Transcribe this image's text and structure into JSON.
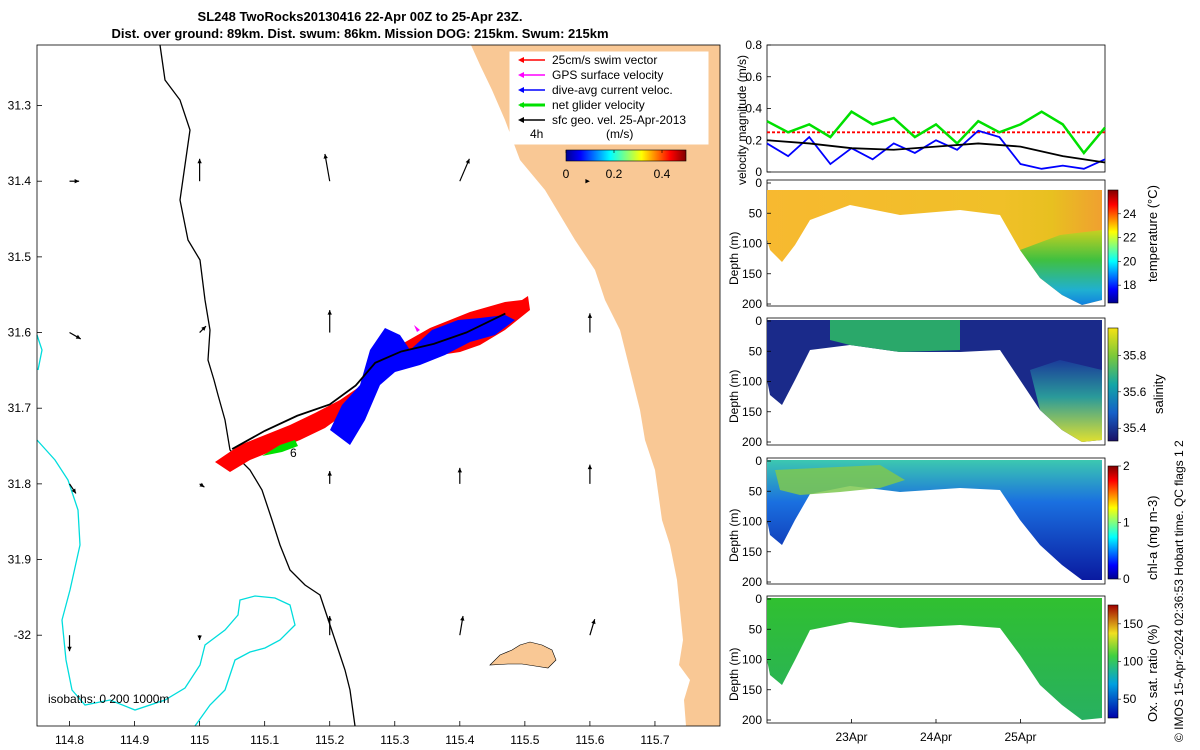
{
  "header": {
    "title_line1": "SL248 TwoRocks20130416 22-Apr 00Z to 25-Apr 23Z.",
    "title_line2": "Dist. over ground: 89km. Dist. swum: 86km. Mission DOG: 215km. Swum: 215km"
  },
  "credit": "© IMOS 15-Apr-2024 02:36:53 Hobart time. QC flags 1  2",
  "colors": {
    "land": "#f9c895",
    "swim_vector": "#ff0000",
    "gps_velocity": "#ff00ff",
    "dive_avg": "#0000ff",
    "net_velocity": "#00e000",
    "sfc_geo": "#000000",
    "isobath_200": "#000000",
    "isobath_1000": "#00dddd"
  },
  "chart_data": [
    {
      "type": "map",
      "xlim": [
        114.75,
        115.8
      ],
      "ylim": [
        -32.12,
        -31.22
      ],
      "x_ticks": [
        "114.8",
        "114.9",
        "115",
        "115.1",
        "115.2",
        "115.3",
        "115.4",
        "115.5",
        "115.6",
        "115.7"
      ],
      "y_ticks": [
        "31.3",
        "31.4",
        "31.5",
        "31.6",
        "31.7",
        "31.8",
        "31.9",
        "-32"
      ],
      "legend": [
        {
          "label": "25cm/s swim vector",
          "color": "#ff0000"
        },
        {
          "label": "GPS surface velocity",
          "color": "#ff00ff"
        },
        {
          "label": "dive-avg current veloc.",
          "color": "#0000ff"
        },
        {
          "label": "net glider velocity",
          "color": "#00e000"
        },
        {
          "label": "sfc geo. vel. 25-Apr-2013",
          "color": "#000000"
        }
      ],
      "colorbar": {
        "label": "(m/s)",
        "ticks": [
          "0",
          "0.2",
          "0.4"
        ],
        "range": [
          0,
          0.5
        ]
      },
      "time_label": "4h",
      "track_label": "6",
      "isobath_label": "isobaths: 0   200  1000m",
      "track": [
        [
          115.05,
          -31.754
        ],
        [
          115.1,
          -31.73
        ],
        [
          115.15,
          -31.71
        ],
        [
          115.2,
          -31.695
        ],
        [
          115.24,
          -31.67
        ],
        [
          115.27,
          -31.64
        ],
        [
          115.31,
          -31.625
        ],
        [
          115.36,
          -31.615
        ],
        [
          115.41,
          -31.6
        ],
        [
          115.47,
          -31.575
        ]
      ],
      "arrow_grid": [
        {
          "lon": 114.8,
          "lat": -31.4,
          "u": 0.06,
          "v": 0.0
        },
        {
          "lon": 115.0,
          "lat": -31.4,
          "u": 0.0,
          "v": 0.14
        },
        {
          "lon": 115.2,
          "lat": -31.4,
          "u": -0.03,
          "v": 0.17
        },
        {
          "lon": 115.4,
          "lat": -31.4,
          "u": 0.06,
          "v": 0.14
        },
        {
          "lon": 114.8,
          "lat": -31.6,
          "u": 0.07,
          "v": -0.04
        },
        {
          "lon": 115.0,
          "lat": -31.6,
          "u": 0.04,
          "v": 0.04
        },
        {
          "lon": 115.2,
          "lat": -31.6,
          "u": 0.0,
          "v": 0.14
        },
        {
          "lon": 115.6,
          "lat": -31.6,
          "u": 0.0,
          "v": 0.12
        },
        {
          "lon": 115.6,
          "lat": -31.4,
          "u": 0.0,
          "v": 0.0
        },
        {
          "lon": 114.8,
          "lat": -31.8,
          "u": 0.04,
          "v": -0.06
        },
        {
          "lon": 115.0,
          "lat": -31.8,
          "u": 0.03,
          "v": -0.02
        },
        {
          "lon": 115.2,
          "lat": -31.8,
          "u": 0.0,
          "v": 0.08
        },
        {
          "lon": 115.4,
          "lat": -31.8,
          "u": 0.0,
          "v": 0.1
        },
        {
          "lon": 115.6,
          "lat": -31.8,
          "u": 0.0,
          "v": 0.12
        },
        {
          "lon": 114.8,
          "lat": -32.0,
          "u": 0.0,
          "v": -0.1
        },
        {
          "lon": 115.0,
          "lat": -32.0,
          "u": 0.0,
          "v": -0.03
        },
        {
          "lon": 115.2,
          "lat": -32.0,
          "u": 0.0,
          "v": 0.12
        },
        {
          "lon": 115.4,
          "lat": -32.0,
          "u": 0.02,
          "v": 0.12
        },
        {
          "lon": 115.6,
          "lat": -32.0,
          "u": 0.03,
          "v": 0.1
        }
      ]
    },
    {
      "type": "line",
      "ylabel": "velocity magnitude (m/s)",
      "ylim": [
        0,
        0.8
      ],
      "y_ticks": [
        "0",
        "0.2",
        "0.4",
        "0.6",
        "0.8"
      ],
      "xlim": [
        0,
        4
      ],
      "series": [
        {
          "color": "#ff0000",
          "x": [
            0,
            4
          ],
          "values": [
            0.25,
            0.25
          ]
        },
        {
          "color": "#00e000",
          "x": [
            0,
            0.25,
            0.5,
            0.75,
            1.0,
            1.25,
            1.5,
            1.75,
            2.0,
            2.25,
            2.5,
            2.75,
            3.0,
            3.25,
            3.5,
            3.75,
            4.0
          ],
          "values": [
            0.32,
            0.25,
            0.3,
            0.22,
            0.38,
            0.3,
            0.34,
            0.22,
            0.3,
            0.18,
            0.32,
            0.25,
            0.3,
            0.38,
            0.3,
            0.12,
            0.28
          ]
        },
        {
          "color": "#0000ff",
          "x": [
            0,
            0.25,
            0.5,
            0.75,
            1.0,
            1.25,
            1.5,
            1.75,
            2.0,
            2.25,
            2.5,
            2.75,
            3.0,
            3.25,
            3.5,
            3.75,
            4.0
          ],
          "values": [
            0.18,
            0.1,
            0.22,
            0.05,
            0.15,
            0.08,
            0.18,
            0.12,
            0.2,
            0.14,
            0.26,
            0.22,
            0.05,
            0.02,
            0.04,
            0.02,
            0.08
          ]
        },
        {
          "color": "#000000",
          "x": [
            0,
            0.5,
            1.0,
            1.5,
            2.0,
            2.5,
            3.0,
            3.5,
            4.0
          ],
          "values": [
            0.2,
            0.18,
            0.15,
            0.14,
            0.16,
            0.18,
            0.16,
            0.1,
            0.06
          ]
        }
      ]
    },
    {
      "type": "heatmap",
      "ylabel": "Depth (m)",
      "y_ticks": [
        "0",
        "50",
        "100",
        "150",
        "200"
      ],
      "ylim": [
        0,
        200
      ],
      "colorbar_label": "temperature (°C)",
      "colorbar_ticks": [
        "18",
        "20",
        "22",
        "24"
      ]
    },
    {
      "type": "heatmap",
      "ylabel": "Depth (m)",
      "y_ticks": [
        "0",
        "50",
        "100",
        "150",
        "200"
      ],
      "ylim": [
        0,
        200
      ],
      "colorbar_label": "salinity",
      "colorbar_ticks": [
        "35.4",
        "35.6",
        "35.8"
      ]
    },
    {
      "type": "heatmap",
      "ylabel": "Depth (m)",
      "y_ticks": [
        "0",
        "50",
        "100",
        "150",
        "200"
      ],
      "ylim": [
        0,
        200
      ],
      "colorbar_label": "chl-a (mg m-3)",
      "colorbar_ticks": [
        "0",
        "1",
        "2"
      ]
    },
    {
      "type": "heatmap",
      "ylabel": "Depth (m)",
      "y_ticks": [
        "0",
        "50",
        "100",
        "150",
        "200"
      ],
      "ylim": [
        0,
        200
      ],
      "colorbar_label": "Ox. sat. ratio (%)",
      "colorbar_ticks": [
        "50",
        "100",
        "150"
      ],
      "x_ticks": [
        "23Apr",
        "24Apr",
        "25Apr"
      ]
    }
  ]
}
